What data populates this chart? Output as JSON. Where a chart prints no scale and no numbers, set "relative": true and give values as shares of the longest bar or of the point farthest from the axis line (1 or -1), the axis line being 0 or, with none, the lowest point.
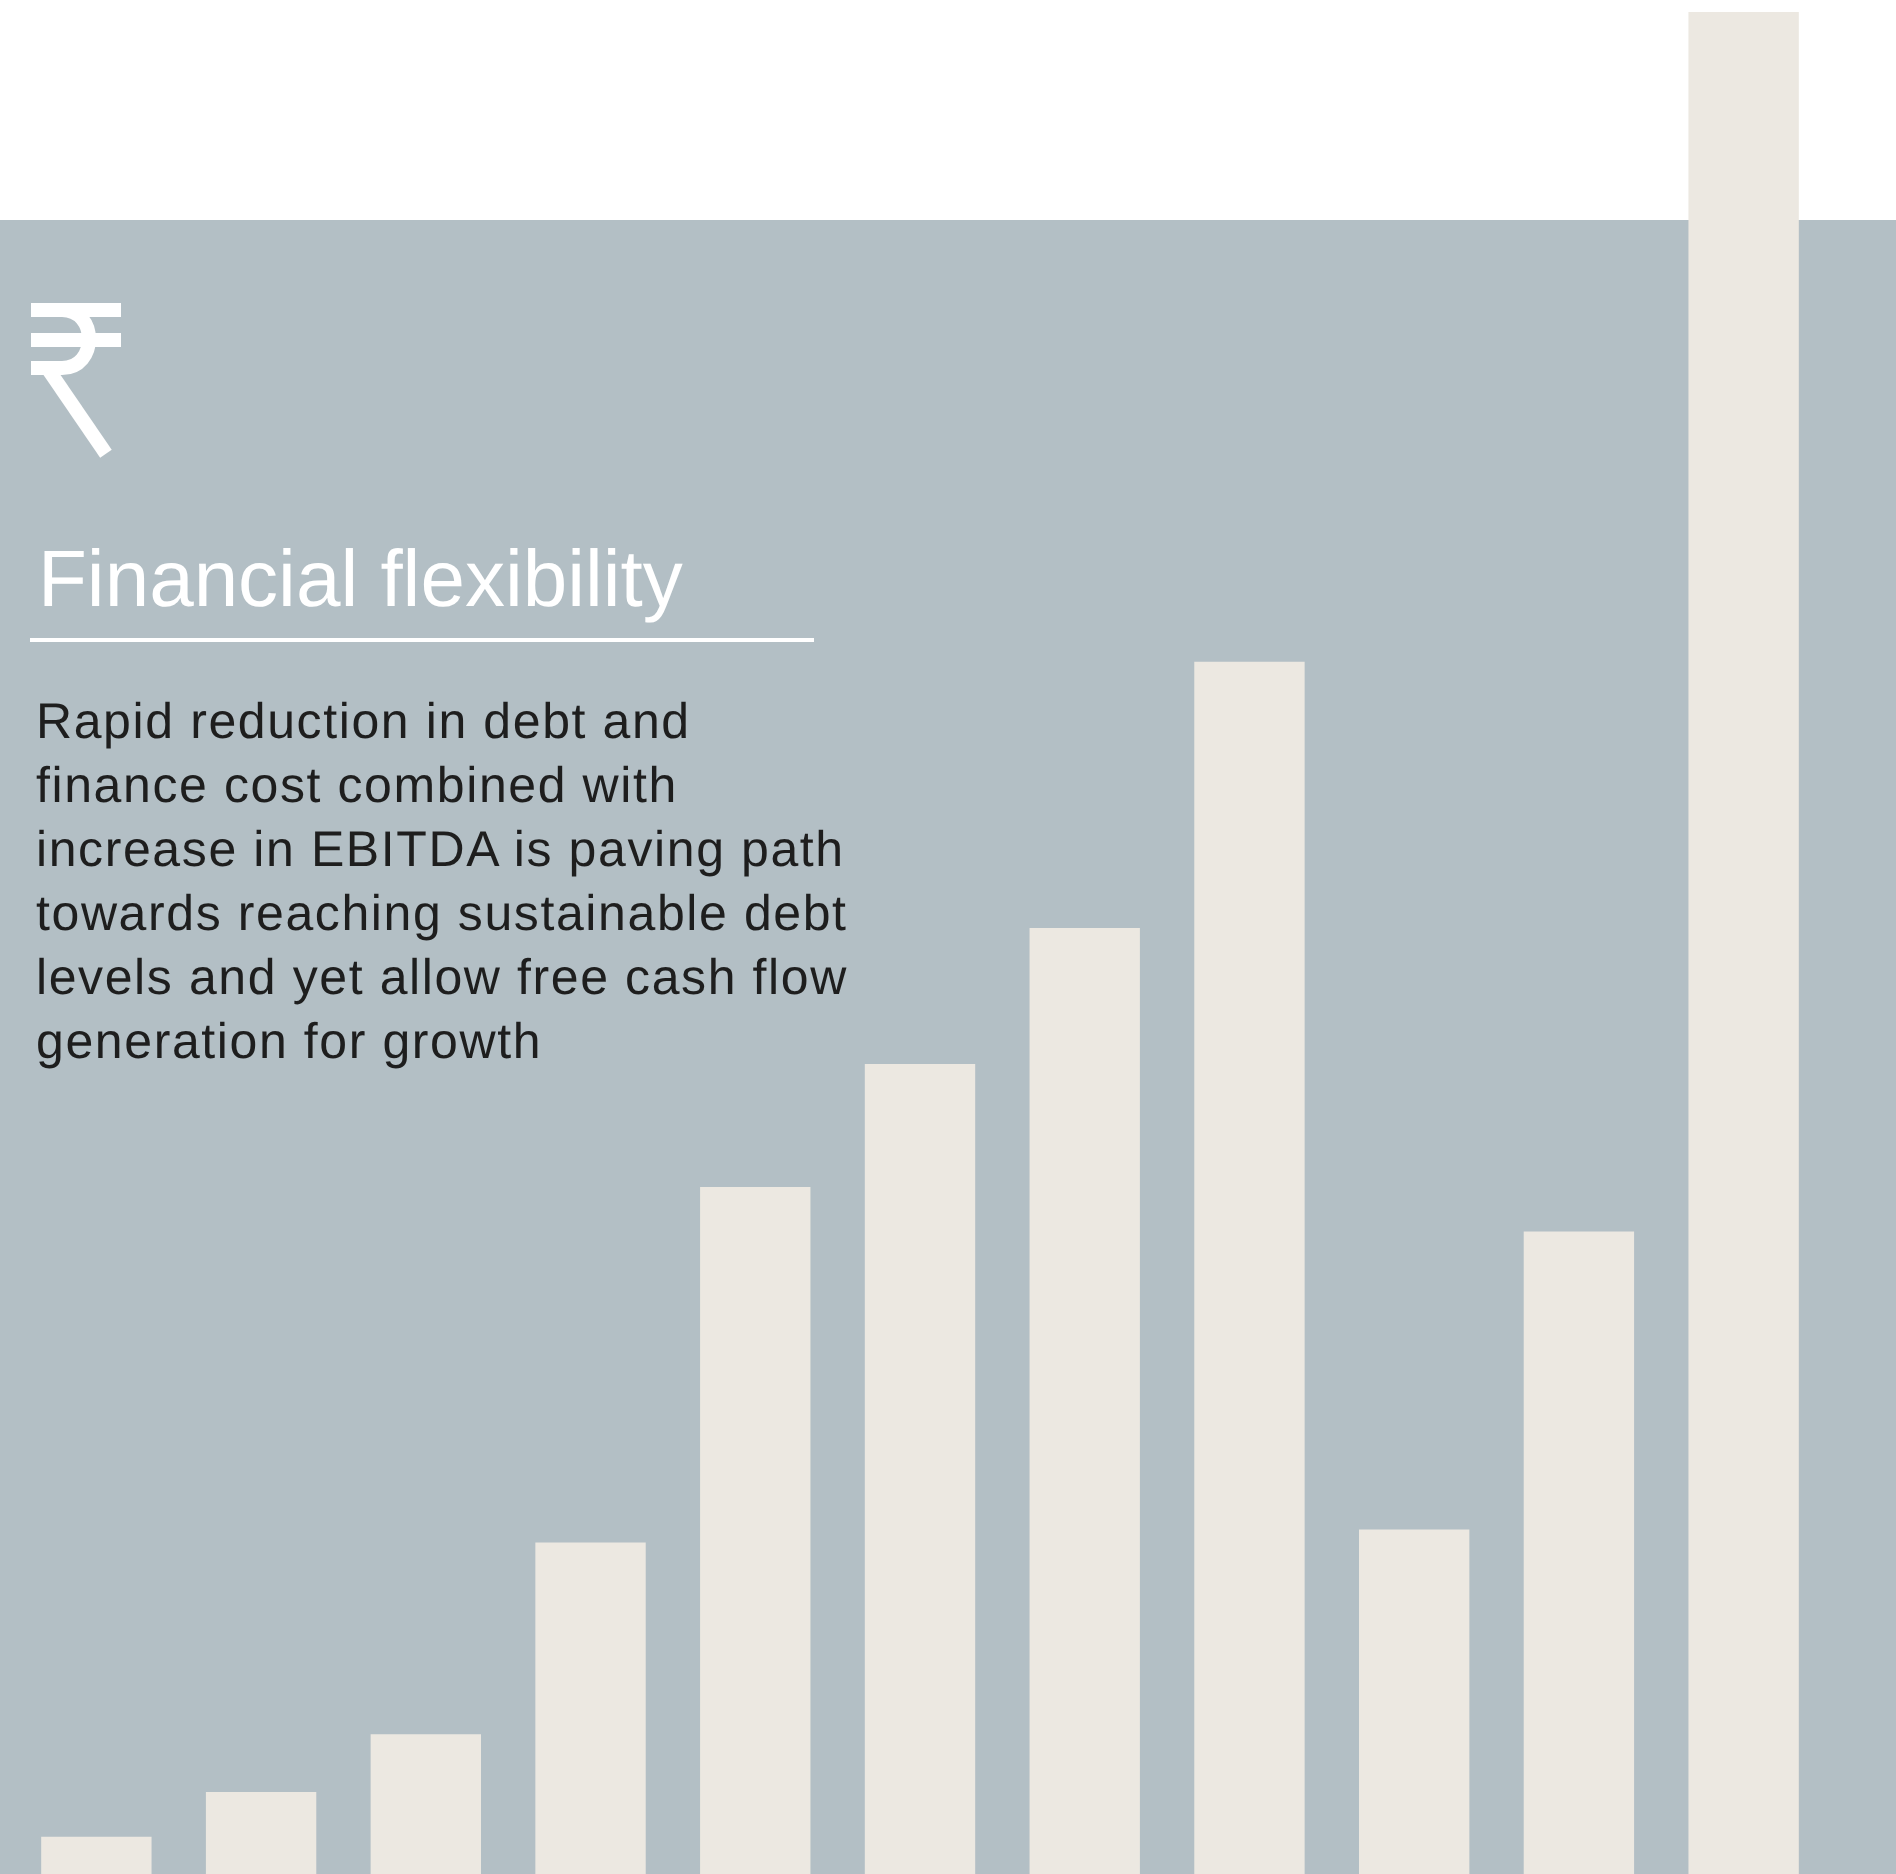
{
  "chart_data": {
    "type": "bar",
    "title": "Financial flexibility",
    "subtitle": "Rapid reduction in debt and finance cost combined with increase in EBITDA is paving path towards reaching sustainable debt levels and yet allow free cash flow generation for growth",
    "relative": true,
    "categories": [
      null,
      null,
      null,
      null,
      null,
      null,
      null,
      null,
      null,
      null,
      null
    ],
    "values": [
      0.02,
      0.044,
      0.075,
      0.178,
      0.369,
      0.435,
      0.508,
      0.651,
      0.185,
      0.345,
      1
    ],
    "color": "#ece8e1",
    "legend": false
  }
}
